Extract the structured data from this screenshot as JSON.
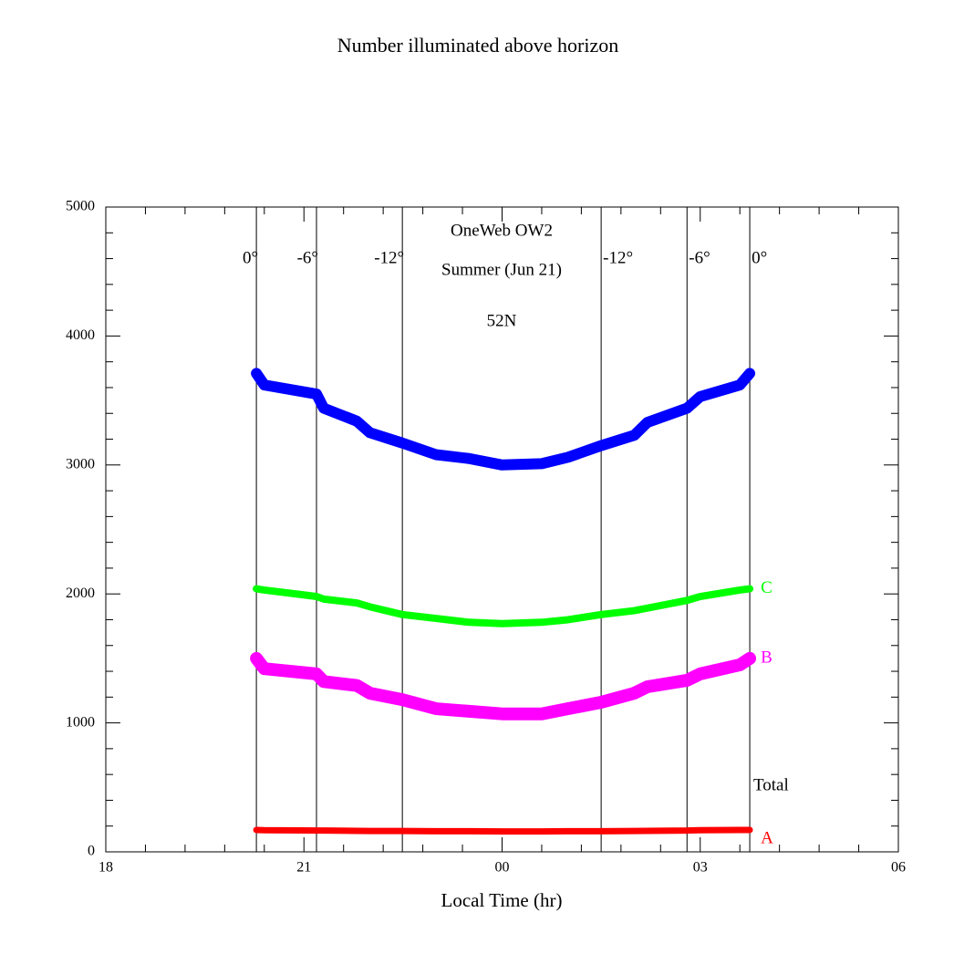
{
  "chart_data": {
    "type": "line",
    "title": "Number illuminated above horizon",
    "x_label": "Local Time (hr)",
    "annotations": [
      "OneWeb OW2",
      "Summer (Jun 21)",
      "52N",
      "Total"
    ],
    "xlim": [
      18,
      30
    ],
    "xticks": [
      18,
      21,
      {
        "value": 24,
        "label": "00"
      },
      {
        "value": 27,
        "label": "03"
      },
      {
        "value": 30,
        "label": "06"
      }
    ],
    "ylim": [
      0,
      5000
    ],
    "yticks": [
      0,
      1000,
      2000,
      3000,
      4000,
      5000
    ],
    "twilight_lines": [
      {
        "x": 20.28,
        "label": "0°"
      },
      {
        "x": 21.19,
        "label": "-6°"
      },
      {
        "x": 22.49,
        "label": "-12°"
      },
      {
        "x": 25.5,
        "label": "-12°"
      },
      {
        "x": 26.8,
        "label": "-6°"
      },
      {
        "x": 27.75,
        "label": "0°"
      }
    ],
    "x": [
      20.28,
      20.4,
      21.19,
      21.3,
      21.8,
      22.0,
      22.49,
      23.0,
      23.5,
      24.0,
      24.6,
      25.0,
      25.5,
      26.0,
      26.2,
      26.8,
      27.0,
      27.6,
      27.75
    ],
    "series": [
      {
        "color": "#0000ff",
        "width": 12,
        "values": [
          3710,
          3620,
          3550,
          3440,
          3340,
          3250,
          3170,
          3080,
          3050,
          3000,
          3010,
          3060,
          3150,
          3230,
          3330,
          3440,
          3530,
          3620,
          3710
        ]
      },
      {
        "name": "C",
        "color": "#00ff00",
        "width": 8,
        "values": [
          2040,
          2030,
          1980,
          1960,
          1930,
          1900,
          1840,
          1810,
          1780,
          1770,
          1780,
          1800,
          1840,
          1870,
          1890,
          1950,
          1980,
          2030,
          2040
        ]
      },
      {
        "name": "B",
        "color": "#ff00ff",
        "width": 14,
        "values": [
          1500,
          1420,
          1380,
          1320,
          1290,
          1230,
          1180,
          1110,
          1090,
          1070,
          1070,
          1110,
          1160,
          1230,
          1280,
          1330,
          1380,
          1450,
          1500
        ]
      },
      {
        "name": "A",
        "color": "#ff0000",
        "width": 7,
        "values": [
          170,
          168,
          165,
          165,
          163,
          162,
          162,
          160,
          160,
          158,
          158,
          160,
          160,
          162,
          163,
          165,
          168,
          170,
          170
        ]
      }
    ]
  }
}
